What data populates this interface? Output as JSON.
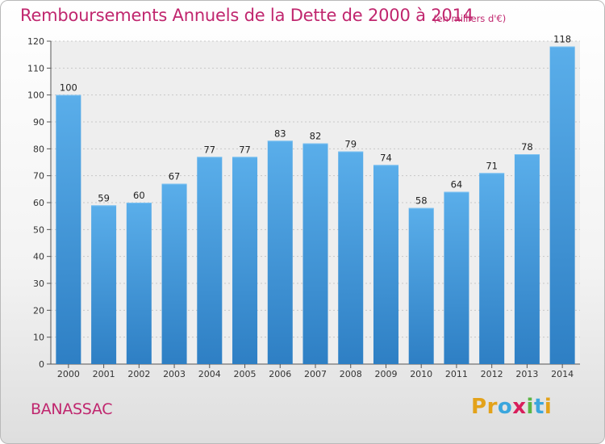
{
  "header": {
    "title": "Remboursements Annuels de la Dette de 2000 à 2014",
    "unit": "(en milliers d'€)"
  },
  "footer": {
    "commune": "BANASSAC",
    "logo_letters": [
      "P",
      "r",
      "o",
      "x",
      "i",
      "t",
      "i"
    ],
    "logo_colors": [
      "#e3a21a",
      "#e3a21a",
      "#3aa6dd",
      "#d81e5b",
      "#5bb544",
      "#3aa6dd",
      "#e3a21a"
    ]
  },
  "chart_data": {
    "type": "bar",
    "title": "Remboursements Annuels de la Dette de 2000 à 2014",
    "categories": [
      "2000",
      "2001",
      "2002",
      "2003",
      "2004",
      "2005",
      "2006",
      "2007",
      "2008",
      "2009",
      "2010",
      "2011",
      "2012",
      "2013",
      "2014"
    ],
    "values": [
      100,
      59,
      60,
      67,
      77,
      77,
      83,
      82,
      79,
      74,
      58,
      64,
      71,
      78,
      118
    ],
    "ylim": [
      0,
      120
    ],
    "yticks": [
      0,
      10,
      20,
      30,
      40,
      50,
      60,
      70,
      80,
      90,
      100,
      110,
      120
    ],
    "grid": true,
    "bar_color": "#3a93dc",
    "data_labels": true
  }
}
